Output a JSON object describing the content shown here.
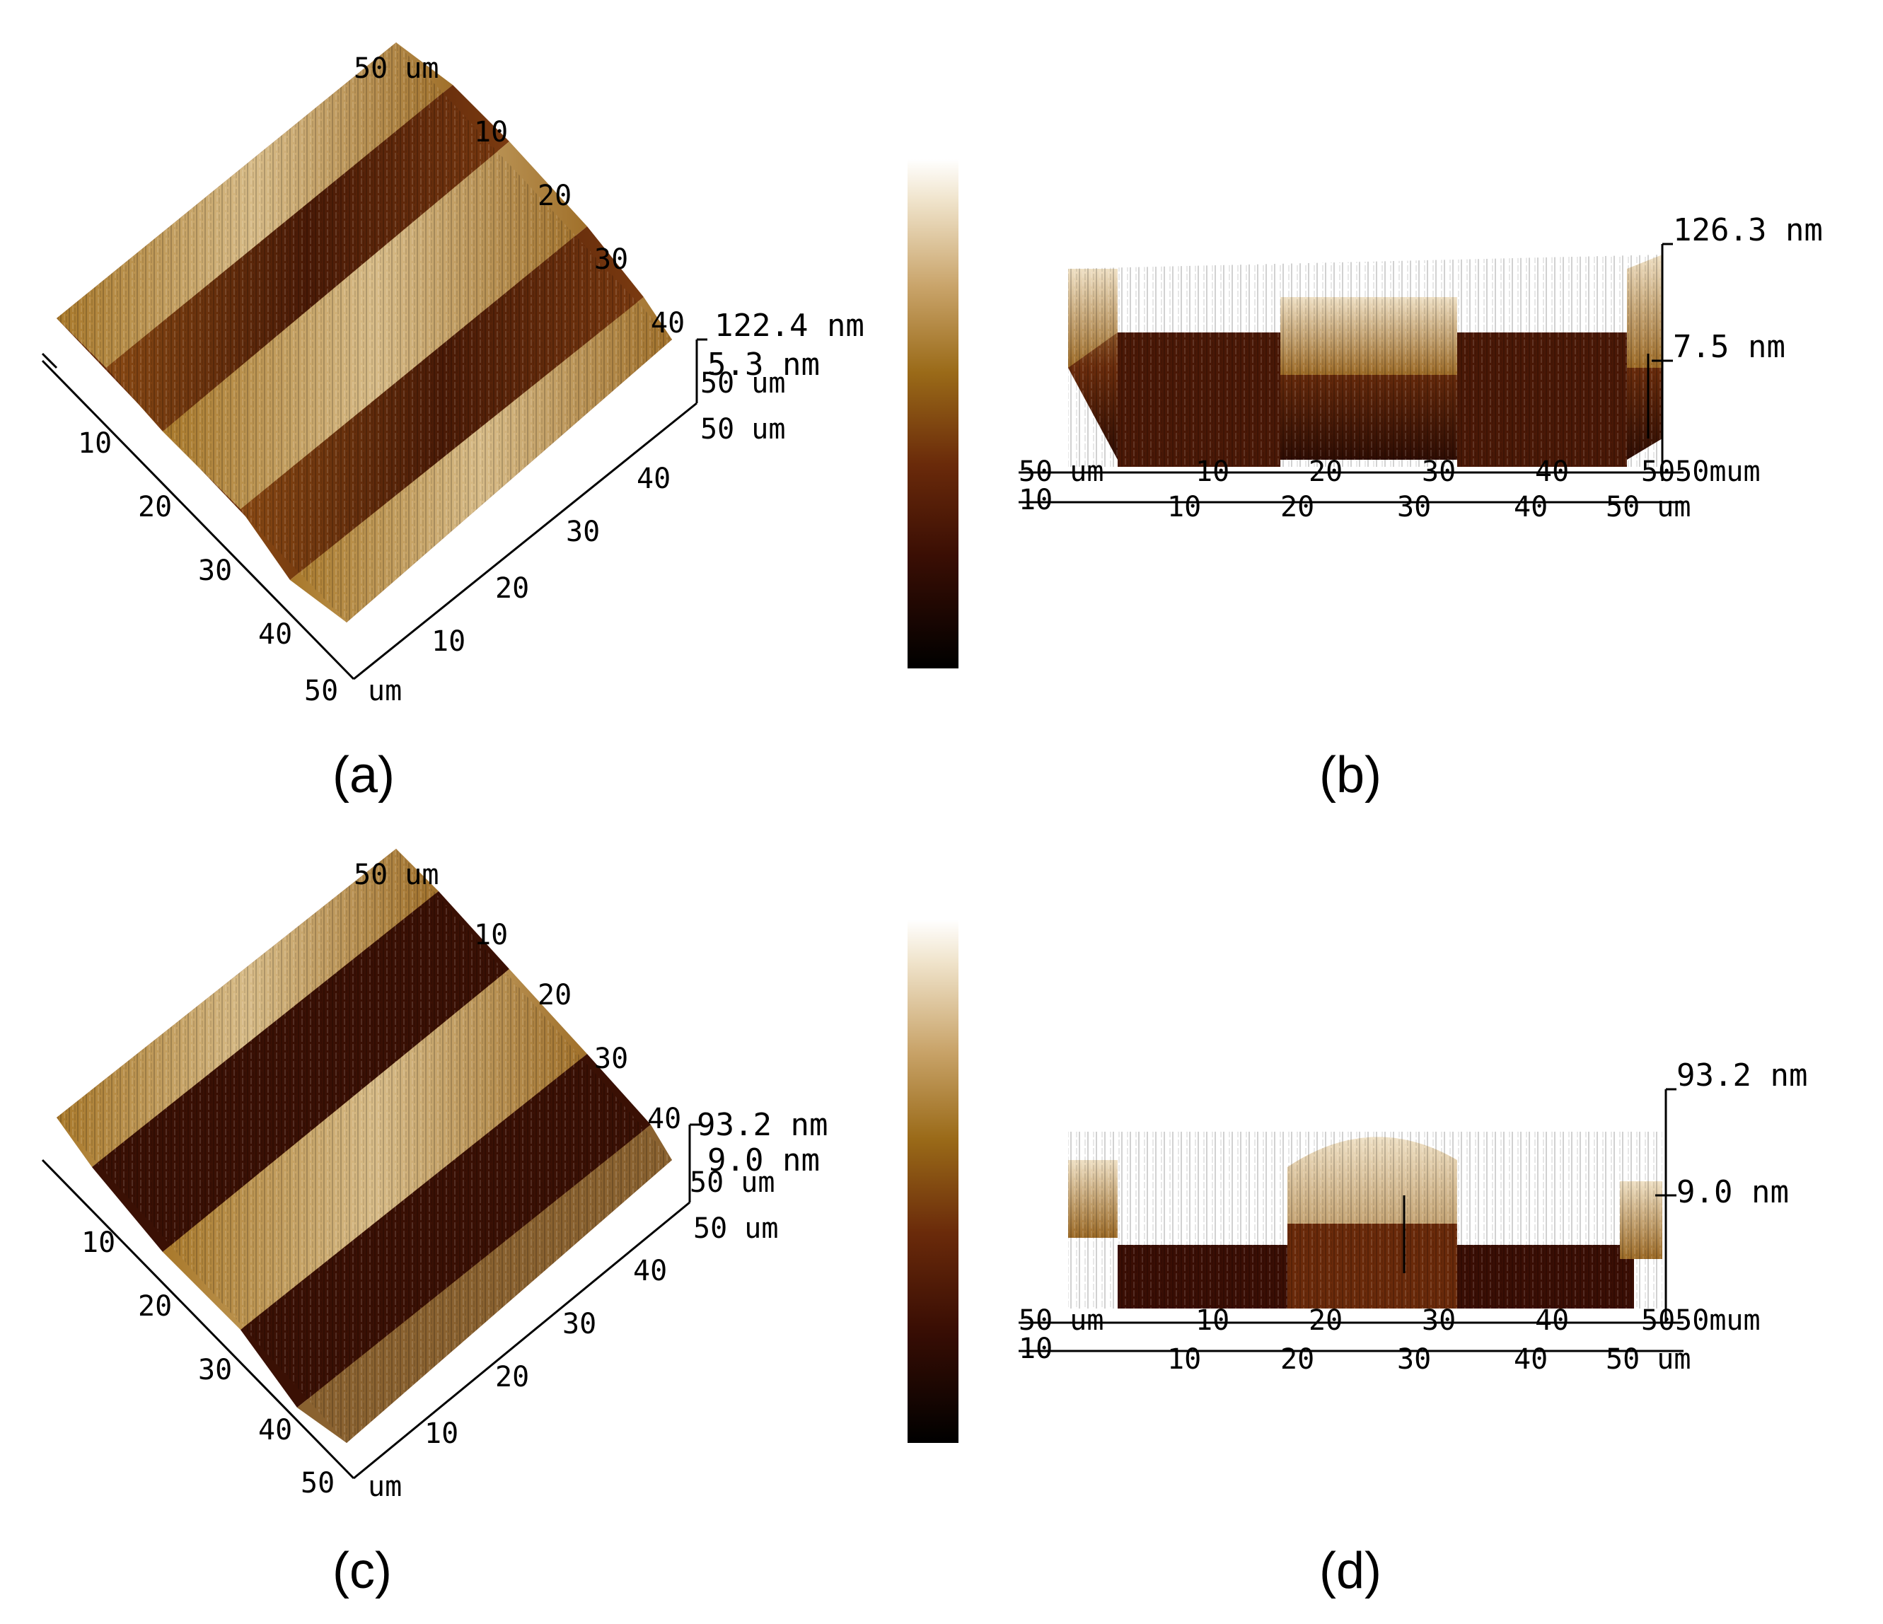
{
  "colors": {
    "afm_dark": "#1a0600",
    "afm_mid": "#7a3a0c",
    "afm_gold": "#b5832a",
    "afm_light": "#f4ecdc",
    "axis": "#000000"
  },
  "panels": [
    {
      "id": "a",
      "caption": "(a)",
      "view": "3d",
      "z_max_label": "122.4 nm",
      "z_mid_label": "5.3 nm",
      "y_axis_top_label": "50 um",
      "right_axis_labels": [
        "10",
        "20",
        "30",
        "40"
      ],
      "right_axis_end": "50 um",
      "left_axis_labels": [
        "10",
        "20",
        "30",
        "40"
      ],
      "left_axis_end": "50",
      "front_axis_labels": [
        "10",
        "20",
        "30",
        "40"
      ],
      "front_axis_end": "50 um",
      "corner_unit": "um",
      "axis_overlap_label": "50 um"
    },
    {
      "id": "b",
      "caption": "(b)",
      "view": "side",
      "z_max_label": "126.3 nm",
      "z_mid_label": "7.5 nm",
      "upper_x_labels": [
        "10",
        "20",
        "30",
        "40"
      ],
      "lower_x_labels": [
        "10",
        "20",
        "30",
        "40",
        "50 um"
      ],
      "upper_left_label": "50 um",
      "upper_right_label": "5050mum",
      "lower_left_label": "10"
    },
    {
      "id": "c",
      "caption": "(c)",
      "view": "3d",
      "z_max_label": "93.2 nm",
      "z_mid_label": "9.0 nm",
      "y_axis_top_label": "50 um",
      "right_axis_labels": [
        "10",
        "20",
        "30",
        "40"
      ],
      "right_axis_end": "50 um",
      "left_axis_labels": [
        "10",
        "20",
        "30",
        "40"
      ],
      "left_axis_end": "50",
      "front_axis_labels": [
        "10",
        "20",
        "30",
        "40"
      ],
      "front_axis_end": "50 um",
      "corner_unit": "um",
      "axis_overlap_label": "50 um"
    },
    {
      "id": "d",
      "caption": "(d)",
      "view": "side",
      "z_max_label": "93.2 nm",
      "z_mid_label": "9.0 nm",
      "upper_x_labels": [
        "10",
        "20",
        "30",
        "40"
      ],
      "lower_x_labels": [
        "10",
        "20",
        "30",
        "40",
        "50 um"
      ],
      "upper_left_label": "50 um",
      "upper_right_label": "5050mum",
      "lower_left_label": "10"
    }
  ]
}
